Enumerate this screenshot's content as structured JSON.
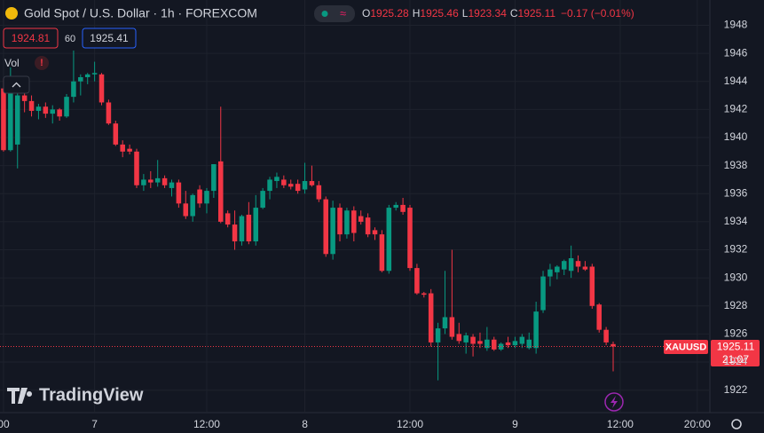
{
  "header": {
    "title": "Gold Spot / U.S. Dollar · 1h · FOREXCOM",
    "ohlc": [
      {
        "label": "O",
        "value": "1925.28"
      },
      {
        "label": "H",
        "value": "1925.46"
      },
      {
        "label": "L",
        "value": "1923.34"
      },
      {
        "label": "C",
        "value": "1925.11"
      }
    ],
    "change": "−0.17 (−0.01%)"
  },
  "quote": {
    "bid": "1924.81",
    "spread": "60",
    "ask": "1925.41"
  },
  "indicator": "Vol",
  "symbol_tag": "XAUUSD",
  "countdown": "21:07",
  "brand": "TradingView",
  "chart_data": {
    "type": "candlestick",
    "up_color": "#089981",
    "down_color": "#f23645",
    "grid": true,
    "ylim": [
      1920.4,
      1949.8
    ],
    "yticks": [
      1922,
      1924,
      1926,
      1928,
      1930,
      1932,
      1934,
      1936,
      1938,
      1940,
      1942,
      1944,
      1946,
      1948
    ],
    "xlim": [
      -0.5,
      100.8
    ],
    "xticks": [
      {
        "value": 0,
        "label": "00"
      },
      {
        "value": 13,
        "label": "7"
      },
      {
        "value": 29,
        "label": "12:00"
      },
      {
        "value": 43,
        "label": "8"
      },
      {
        "value": 58,
        "label": "12:00"
      },
      {
        "value": 73,
        "label": "9"
      },
      {
        "value": 88,
        "label": "12:00"
      },
      {
        "value": 99,
        "label": "20:00"
      }
    ],
    "open": [
      1943.5,
      1939.1,
      1939.5,
      1943.0,
      1942.6,
      1941.9,
      1942.2,
      1941.7,
      1942.0,
      1941.5,
      1942.9,
      1944.0,
      1944.3,
      1944.5,
      1944.5,
      1942.5,
      1941.0,
      1939.5,
      1939.2,
      1939.0,
      1936.6,
      1937.0,
      1936.8,
      1937.1,
      1936.4,
      1936.8,
      1935.3,
      1934.4,
      1936.3,
      1935.3,
      1936.2,
      1938.3,
      1934.6,
      1933.8,
      1932.6,
      1934.5,
      1932.6,
      1935.0,
      1936.2,
      1936.9,
      1937.0,
      1936.7,
      1936.7,
      1936.3,
      1936.9,
      1936.6,
      1935.6,
      1931.7,
      1935.0,
      1933.1,
      1934.8,
      1934.4,
      1934.3,
      1933.4,
      1933.1,
      1930.5,
      1935.0,
      1935.2,
      1935.0,
      1930.7,
      1928.9,
      1928.9,
      1925.4,
      1926.4,
      1927.2,
      1926.0,
      1925.4,
      1925.8,
      1925.5,
      1925.0,
      1925.6,
      1924.9,
      1925.4,
      1925.2,
      1925.3,
      1925.0,
      1925.0,
      1927.7,
      1930.1,
      1930.4,
      1930.6,
      1930.5,
      1931.2,
      1930.8,
      1930.8,
      1928.1,
      1926.3,
      1925.28
    ],
    "high": [
      1944.2,
      1945.0,
      1943.8,
      1943.3,
      1943.0,
      1942.4,
      1942.5,
      1942.3,
      1942.1,
      1943.1,
      1946.2,
      1944.5,
      1944.6,
      1945.4,
      1944.6,
      1942.7,
      1941.2,
      1939.8,
      1939.5,
      1939.2,
      1937.4,
      1937.6,
      1938.4,
      1937.3,
      1937.0,
      1937.0,
      1936.2,
      1936.0,
      1936.6,
      1936.4,
      1938.1,
      1942.2,
      1934.8,
      1934.8,
      1934.5,
      1935.4,
      1935.9,
      1936.4,
      1937.2,
      1937.5,
      1937.3,
      1937.0,
      1937.0,
      1938.2,
      1938.0,
      1936.9,
      1935.8,
      1935.5,
      1935.3,
      1935.0,
      1935.1,
      1934.8,
      1934.6,
      1933.6,
      1933.4,
      1935.2,
      1935.4,
      1935.7,
      1935.2,
      1931.0,
      1929.0,
      1929.2,
      1926.8,
      1930.5,
      1932.0,
      1926.8,
      1926.1,
      1926.0,
      1926.1,
      1926.5,
      1925.8,
      1925.4,
      1925.8,
      1925.8,
      1926.0,
      1926.1,
      1928.3,
      1930.5,
      1931.0,
      1930.9,
      1931.3,
      1932.3,
      1931.6,
      1931.2,
      1931.0,
      1928.2,
      1926.5,
      1925.46
    ],
    "low": [
      1939.0,
      1939.0,
      1937.8,
      1941.8,
      1941.5,
      1941.3,
      1941.4,
      1941.0,
      1941.2,
      1941.4,
      1942.5,
      1943.0,
      1943.8,
      1944.0,
      1942.3,
      1940.9,
      1939.4,
      1938.6,
      1938.8,
      1936.4,
      1936.2,
      1936.4,
      1936.5,
      1936.4,
      1935.8,
      1935.0,
      1934.2,
      1934.0,
      1935.0,
      1934.6,
      1935.7,
      1933.9,
      1933.6,
      1932.0,
      1932.3,
      1932.4,
      1932.3,
      1934.9,
      1935.6,
      1936.4,
      1936.4,
      1936.3,
      1936.0,
      1936.0,
      1936.5,
      1935.4,
      1931.5,
      1931.3,
      1932.6,
      1932.8,
      1932.6,
      1933.8,
      1932.9,
      1932.7,
      1930.4,
      1930.3,
      1934.8,
      1934.5,
      1930.5,
      1928.8,
      1928.6,
      1925.1,
      1922.7,
      1926.0,
      1925.6,
      1925.3,
      1924.6,
      1924.4,
      1925.0,
      1924.8,
      1924.8,
      1924.8,
      1925.0,
      1925.0,
      1925.0,
      1924.9,
      1924.6,
      1927.5,
      1929.4,
      1929.9,
      1930.2,
      1930.0,
      1930.4,
      1930.5,
      1927.8,
      1926.1,
      1925.2,
      1923.34
    ],
    "close": [
      1939.1,
      1943.3,
      1943.0,
      1942.6,
      1941.9,
      1942.2,
      1941.7,
      1942.0,
      1941.5,
      1942.9,
      1944.0,
      1944.3,
      1944.5,
      1944.6,
      1942.5,
      1941.0,
      1939.5,
      1939.0,
      1939.0,
      1936.6,
      1937.0,
      1936.8,
      1937.1,
      1936.6,
      1936.8,
      1935.3,
      1934.4,
      1935.9,
      1935.3,
      1936.2,
      1938.1,
      1934.0,
      1933.8,
      1932.6,
      1934.4,
      1932.6,
      1935.0,
      1936.2,
      1937.0,
      1937.2,
      1936.6,
      1936.5,
      1936.2,
      1936.9,
      1936.6,
      1935.6,
      1931.7,
      1935.0,
      1933.1,
      1934.8,
      1933.2,
      1934.0,
      1933.1,
      1933.1,
      1930.5,
      1935.0,
      1935.2,
      1934.7,
      1930.7,
      1928.9,
      1928.8,
      1925.4,
      1926.4,
      1927.2,
      1925.8,
      1925.5,
      1925.9,
      1925.3,
      1925.3,
      1925.6,
      1924.9,
      1925.3,
      1925.2,
      1925.5,
      1925.8,
      1925.6,
      1927.6,
      1930.1,
      1930.6,
      1930.8,
      1931.2,
      1931.4,
      1930.8,
      1930.6,
      1928.0,
      1926.3,
      1925.4,
      1925.11
    ]
  }
}
